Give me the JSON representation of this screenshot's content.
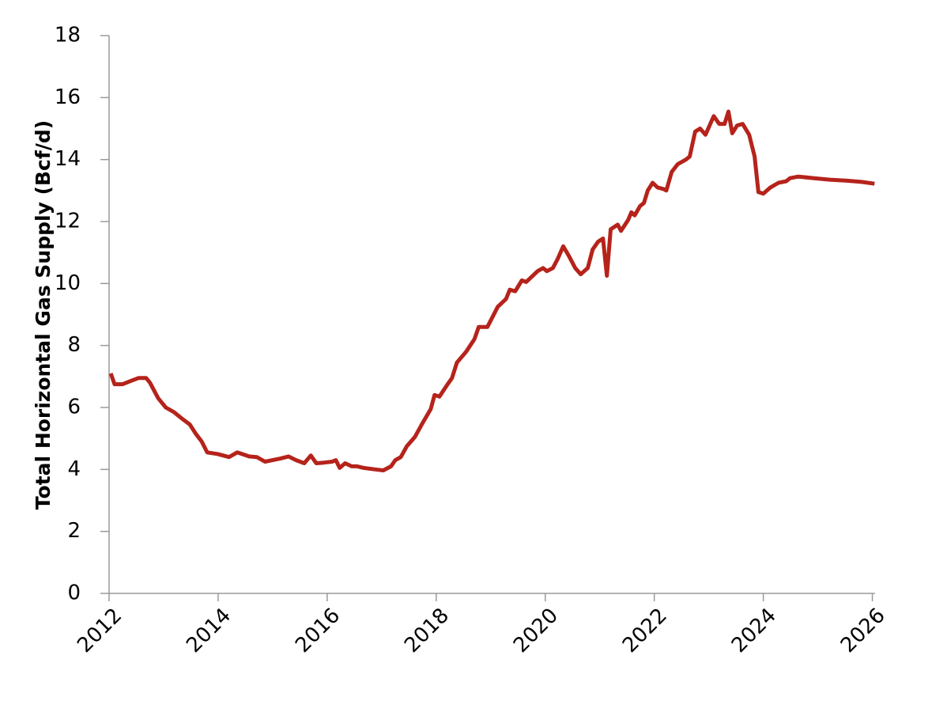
{
  "chart_data": {
    "type": "line",
    "y_label": "Total Horizontal Gas Supply (Bcf/d)",
    "x": [
      2012.03,
      2012.1,
      2012.25,
      2012.39,
      2012.54,
      2012.68,
      2012.75,
      2012.9,
      2013.04,
      2013.19,
      2013.33,
      2013.48,
      2013.59,
      2013.7,
      2013.8,
      2013.99,
      2014.2,
      2014.35,
      2014.57,
      2014.71,
      2014.86,
      2015.14,
      2015.29,
      2015.43,
      2015.58,
      2015.7,
      2015.8,
      2015.94,
      2016.09,
      2016.16,
      2016.23,
      2016.33,
      2016.45,
      2016.55,
      2016.67,
      2016.88,
      2017.03,
      2017.17,
      2017.25,
      2017.35,
      2017.46,
      2017.61,
      2017.75,
      2017.9,
      2017.97,
      2018.06,
      2018.19,
      2018.29,
      2018.38,
      2018.55,
      2018.7,
      2018.78,
      2018.94,
      2019.13,
      2019.28,
      2019.35,
      2019.45,
      2019.57,
      2019.65,
      2019.86,
      2019.96,
      2020.03,
      2020.14,
      2020.23,
      2020.33,
      2020.43,
      2020.55,
      2020.65,
      2020.78,
      2020.87,
      2020.97,
      2021.06,
      2021.13,
      2021.2,
      2021.33,
      2021.39,
      2021.52,
      2021.58,
      2021.64,
      2021.74,
      2021.81,
      2021.88,
      2021.97,
      2022.06,
      2022.17,
      2022.22,
      2022.32,
      2022.43,
      2022.58,
      2022.65,
      2022.75,
      2022.84,
      2022.94,
      2023.09,
      2023.19,
      2023.29,
      2023.36,
      2023.43,
      2023.52,
      2023.62,
      2023.74,
      2023.84,
      2023.91,
      2024.0,
      2024.13,
      2024.28,
      2024.42,
      2024.49,
      2024.64,
      2024.93,
      2025.22,
      2025.51,
      2025.8,
      2026.04
    ],
    "series": [
      {
        "color": "#b5231b",
        "values": [
          7.1,
          6.75,
          6.75,
          6.85,
          6.95,
          6.95,
          6.8,
          6.3,
          6.0,
          5.85,
          5.65,
          5.45,
          5.15,
          4.9,
          4.55,
          4.5,
          4.4,
          4.55,
          4.42,
          4.4,
          4.25,
          4.35,
          4.42,
          4.3,
          4.2,
          4.45,
          4.2,
          4.22,
          4.25,
          4.3,
          4.05,
          4.2,
          4.1,
          4.1,
          4.05,
          4.0,
          3.97,
          4.1,
          4.3,
          4.4,
          4.75,
          5.05,
          5.5,
          5.95,
          6.4,
          6.35,
          6.7,
          6.95,
          7.45,
          7.8,
          8.2,
          8.6,
          8.6,
          9.25,
          9.5,
          9.8,
          9.75,
          10.1,
          10.05,
          10.4,
          10.5,
          10.4,
          10.5,
          10.8,
          11.2,
          10.9,
          10.5,
          10.3,
          10.5,
          11.1,
          11.35,
          11.45,
          10.25,
          11.75,
          11.9,
          11.7,
          12.05,
          12.3,
          12.2,
          12.5,
          12.6,
          13.0,
          13.25,
          13.1,
          13.05,
          13.0,
          13.6,
          13.85,
          14.0,
          14.1,
          14.9,
          15.0,
          14.8,
          15.4,
          15.15,
          15.15,
          15.55,
          14.85,
          15.1,
          15.15,
          14.8,
          14.1,
          12.95,
          12.9,
          13.1,
          13.25,
          13.3,
          13.4,
          13.45,
          13.4,
          13.35,
          13.32,
          13.28,
          13.22
        ]
      }
    ],
    "xlim": [
      2012,
      2026.05
    ],
    "xticks": [
      2012,
      2014,
      2016,
      2018,
      2020,
      2022,
      2024,
      2026
    ],
    "ylim": [
      0,
      18
    ],
    "yticks": [
      0,
      2,
      4,
      6,
      8,
      10,
      12,
      14,
      16,
      18
    ]
  }
}
